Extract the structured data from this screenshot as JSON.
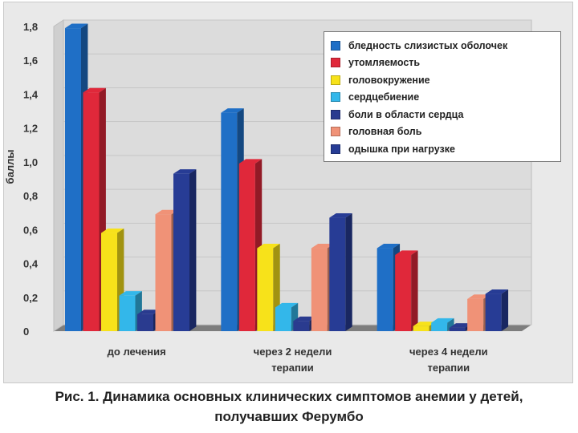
{
  "caption": {
    "line1": "Рис. 1. Динамика основных клинических симптомов анемии у детей,",
    "line2": "получавших Ферумбо"
  },
  "chart_data": {
    "type": "bar",
    "ylabel": "баллы",
    "ylim": [
      0,
      1.8
    ],
    "yticks": [
      "0",
      "0,2",
      "0,4",
      "0,6",
      "0,8",
      "1,0",
      "1,2",
      "1,4",
      "1,6",
      "1,8"
    ],
    "categories": [
      [
        "до лечения"
      ],
      [
        "через 2 недели",
        "терапии"
      ],
      [
        "через 4 недели",
        "терапии"
      ]
    ],
    "legend_position": "top-right",
    "series": [
      {
        "name": "бледность слизистых оболочек",
        "color": "#1f6fc6",
        "values": [
          1.79,
          1.29,
          0.49
        ]
      },
      {
        "name": "утомляемость",
        "color": "#e0283a",
        "values": [
          1.41,
          0.99,
          0.45
        ]
      },
      {
        "name": "головокружение",
        "color": "#f7e21a",
        "values": [
          0.58,
          0.49,
          0.03
        ]
      },
      {
        "name": "сердцебиение",
        "color": "#33b7ea",
        "values": [
          0.21,
          0.14,
          0.05
        ]
      },
      {
        "name": "боли в области сердца",
        "color": "#2a3b8f",
        "values": [
          0.1,
          0.06,
          0.02
        ]
      },
      {
        "name": "головная боль",
        "color": "#f09277",
        "values": [
          0.69,
          0.49,
          0.19
        ]
      },
      {
        "name": "одышка при нагрузке",
        "color": "#273c95",
        "values": [
          0.93,
          0.67,
          0.22
        ]
      }
    ]
  }
}
